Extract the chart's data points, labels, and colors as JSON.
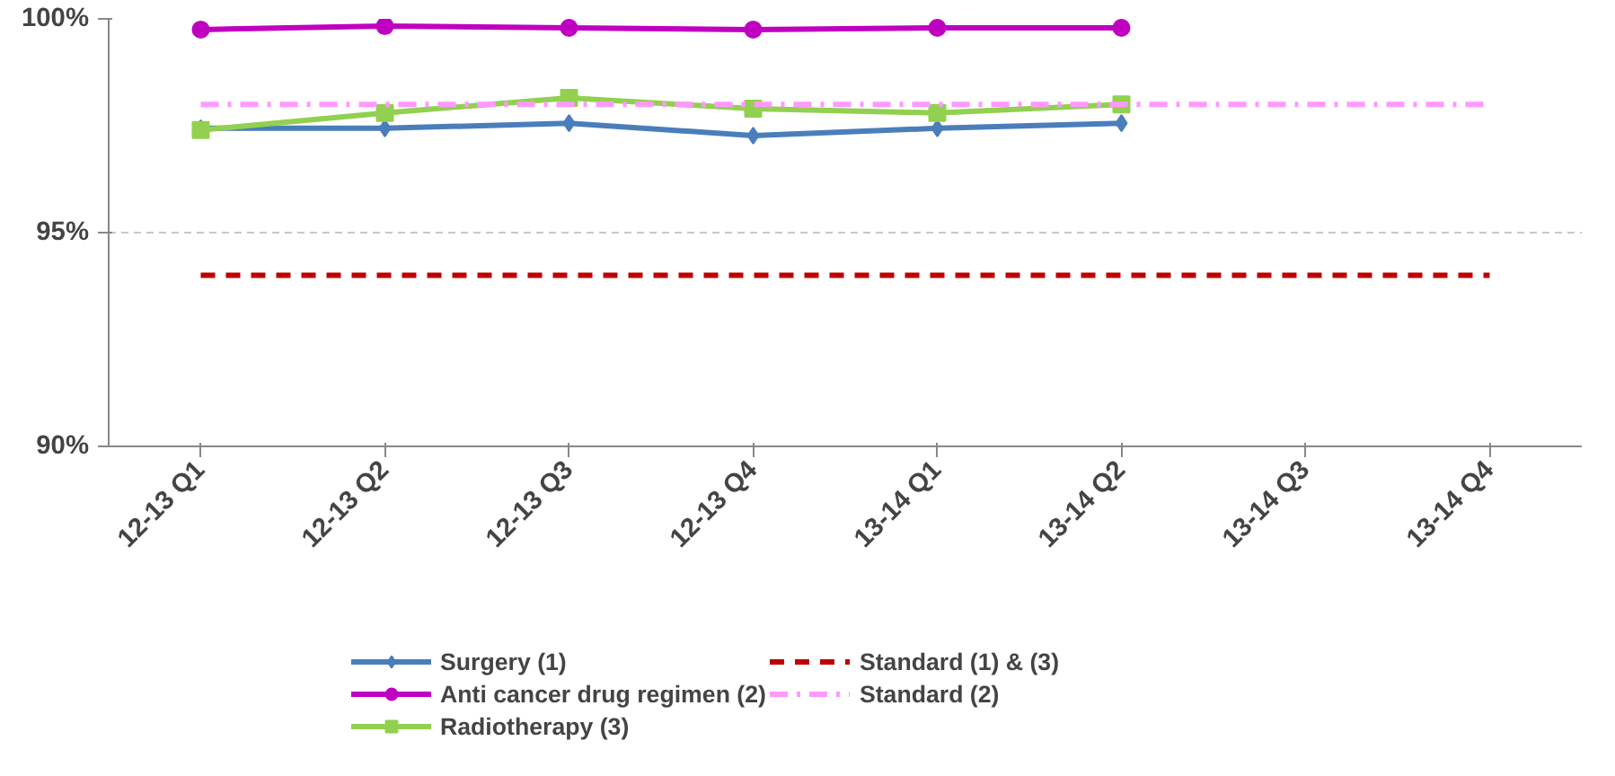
{
  "chart_data": {
    "type": "line",
    "categories": [
      "12-13 Q1",
      "12-13 Q2",
      "12-13 Q3",
      "12-13 Q4",
      "13-14 Q1",
      "13-14 Q2",
      "13-14 Q3",
      "13-14 Q4"
    ],
    "ylim": [
      90,
      100
    ],
    "yticks": [
      {
        "value": 90,
        "label": "90%"
      },
      {
        "value": 95,
        "label": "95%"
      },
      {
        "value": 100,
        "label": "100%"
      }
    ],
    "grid": "y",
    "legend": "bottom",
    "series": [
      {
        "name": "Surgery (1)",
        "color": "#4a7ebb",
        "marker": "diamond",
        "line_style": "solid",
        "values": [
          97.44,
          97.44,
          97.56,
          97.27,
          97.44,
          97.56,
          null,
          null
        ]
      },
      {
        "name": "Anti cancer drug regimen (2)",
        "color": "#c000c0",
        "marker": "circle",
        "line_style": "solid",
        "values": [
          99.75,
          99.83,
          99.79,
          99.75,
          99.79,
          99.79,
          null,
          null
        ]
      },
      {
        "name": "Radiotherapy (3)",
        "color": "#92d050",
        "marker": "square",
        "line_style": "solid",
        "values": [
          97.4,
          97.8,
          98.15,
          97.9,
          97.8,
          98.0,
          null,
          null
        ]
      },
      {
        "name": "Standard (1) & (3)",
        "color": "#c00000",
        "marker": "none",
        "line_style": "dashed",
        "values": [
          94,
          94,
          94,
          94,
          94,
          94,
          94,
          94
        ]
      },
      {
        "name": "Standard (2)",
        "color": "#ff99ff",
        "marker": "none",
        "line_style": "dashdot",
        "values": [
          98,
          98,
          98,
          98,
          98,
          98,
          98,
          98
        ]
      }
    ]
  }
}
